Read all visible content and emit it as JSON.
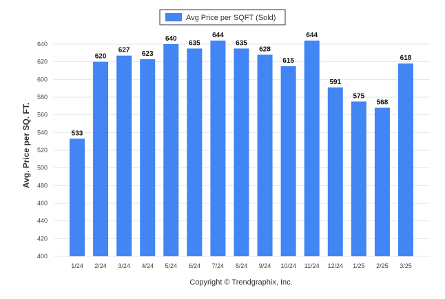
{
  "chart_data": {
    "type": "bar",
    "title": "",
    "xlabel": "",
    "ylabel": "Avg. Price per SQ. FT.",
    "categories": [
      "1/24",
      "2/24",
      "3/24",
      "4/24",
      "5/24",
      "6/24",
      "7/24",
      "8/24",
      "9/24",
      "10/24",
      "11/24",
      "12/24",
      "1/25",
      "2/25",
      "3/25"
    ],
    "series": [
      {
        "name": "Avg Price per SQFT (Sold)",
        "values": [
          533,
          620,
          627,
          623,
          640,
          635,
          644,
          635,
          628,
          615,
          644,
          591,
          575,
          568,
          618
        ],
        "color": "#4285f4"
      }
    ],
    "ylim": [
      400,
      640
    ],
    "yticks": [
      400,
      420,
      440,
      460,
      480,
      500,
      520,
      540,
      560,
      580,
      600,
      620,
      640
    ],
    "grid": true,
    "legend_position": "top-center",
    "data_labels": true
  },
  "footer": {
    "copyright": "Copyright © Trendgraphix, Inc."
  }
}
